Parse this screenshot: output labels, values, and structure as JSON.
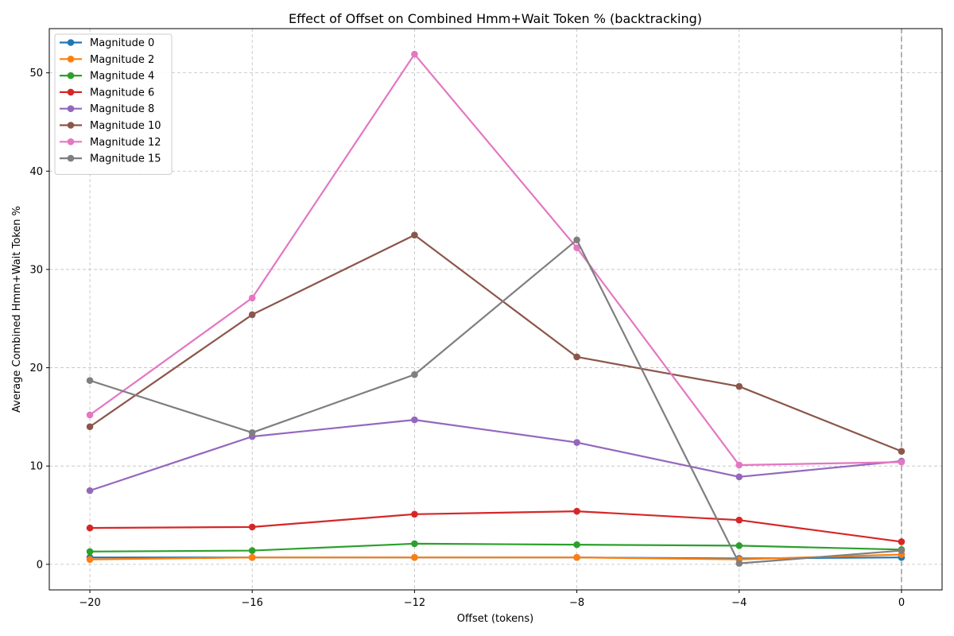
{
  "chart_data": {
    "type": "line",
    "title": "Effect of Offset on Combined Hmm+Wait Token % (backtracking)",
    "xlabel": "Offset (tokens)",
    "ylabel": "Average Combined Hmm+Wait Token %",
    "x": [
      -20,
      -16,
      -12,
      -8,
      -4,
      0
    ],
    "x_tick_labels": [
      "−20",
      "−16",
      "−12",
      "−8",
      "−4",
      "0"
    ],
    "y_ticks": [
      0,
      10,
      20,
      30,
      40,
      50
    ],
    "y_tick_labels": [
      "0",
      "10",
      "20",
      "30",
      "40",
      "50"
    ],
    "xlim": [
      -21,
      1
    ],
    "ylim": [
      -2.6,
      54.5
    ],
    "grid": true,
    "legend_position": "top-left",
    "vertical_reference_line_x": 0,
    "series": [
      {
        "name": "Magnitude 0",
        "color": "#1f77b4",
        "values": [
          0.7,
          0.7,
          0.7,
          0.7,
          0.6,
          0.7
        ]
      },
      {
        "name": "Magnitude 2",
        "color": "#ff7f0e",
        "values": [
          0.5,
          0.7,
          0.7,
          0.7,
          0.5,
          1.0
        ]
      },
      {
        "name": "Magnitude 4",
        "color": "#2ca02c",
        "values": [
          1.3,
          1.4,
          2.1,
          2.0,
          1.9,
          1.5
        ]
      },
      {
        "name": "Magnitude 6",
        "color": "#d62728",
        "values": [
          3.7,
          3.8,
          5.1,
          5.4,
          4.5,
          2.3
        ]
      },
      {
        "name": "Magnitude 8",
        "color": "#9467bd",
        "values": [
          7.5,
          13.0,
          14.7,
          12.4,
          8.9,
          10.5
        ]
      },
      {
        "name": "Magnitude 10",
        "color": "#8c564b",
        "values": [
          14.0,
          25.4,
          33.5,
          21.1,
          18.1,
          11.5
        ]
      },
      {
        "name": "Magnitude 12",
        "color": "#e377c2",
        "values": [
          15.2,
          27.1,
          51.9,
          32.2,
          10.1,
          10.4
        ]
      },
      {
        "name": "Magnitude 15",
        "color": "#7f7f7f",
        "values": [
          18.7,
          13.4,
          19.3,
          33.0,
          0.1,
          1.4
        ]
      }
    ]
  }
}
